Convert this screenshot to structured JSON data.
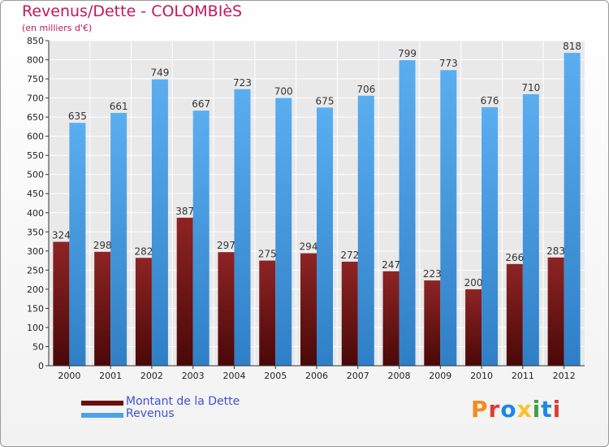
{
  "title": "Revenus/Dette - COLOMBIèS",
  "subtitle": "(en milliers d'€)",
  "chart_data": {
    "type": "bar",
    "title": "Revenus/Dette - COLOMBIèS",
    "ylabel": "(en milliers d'€)",
    "xlabel": "",
    "ylim": [
      0,
      850
    ],
    "ytick_step": 50,
    "grid": true,
    "categories": [
      "2000",
      "2001",
      "2002",
      "2003",
      "2004",
      "2005",
      "2006",
      "2007",
      "2008",
      "2009",
      "2010",
      "2011",
      "2012"
    ],
    "series": [
      {
        "name": "Montant de la Dette",
        "color": "#7b1a1a",
        "values": [
          324,
          298,
          282,
          387,
          297,
          275,
          294,
          272,
          247,
          223,
          200,
          266,
          283
        ]
      },
      {
        "name": "Revenus",
        "color": "#4aa3e8",
        "values": [
          635,
          661,
          749,
          667,
          723,
          700,
          675,
          706,
          799,
          773,
          676,
          710,
          818
        ]
      }
    ]
  },
  "legend": {
    "debt_label": "Montant de la Dette",
    "revenue_label": "Revenus",
    "placement": "bottom-left"
  },
  "logo_text": "Proxiti"
}
